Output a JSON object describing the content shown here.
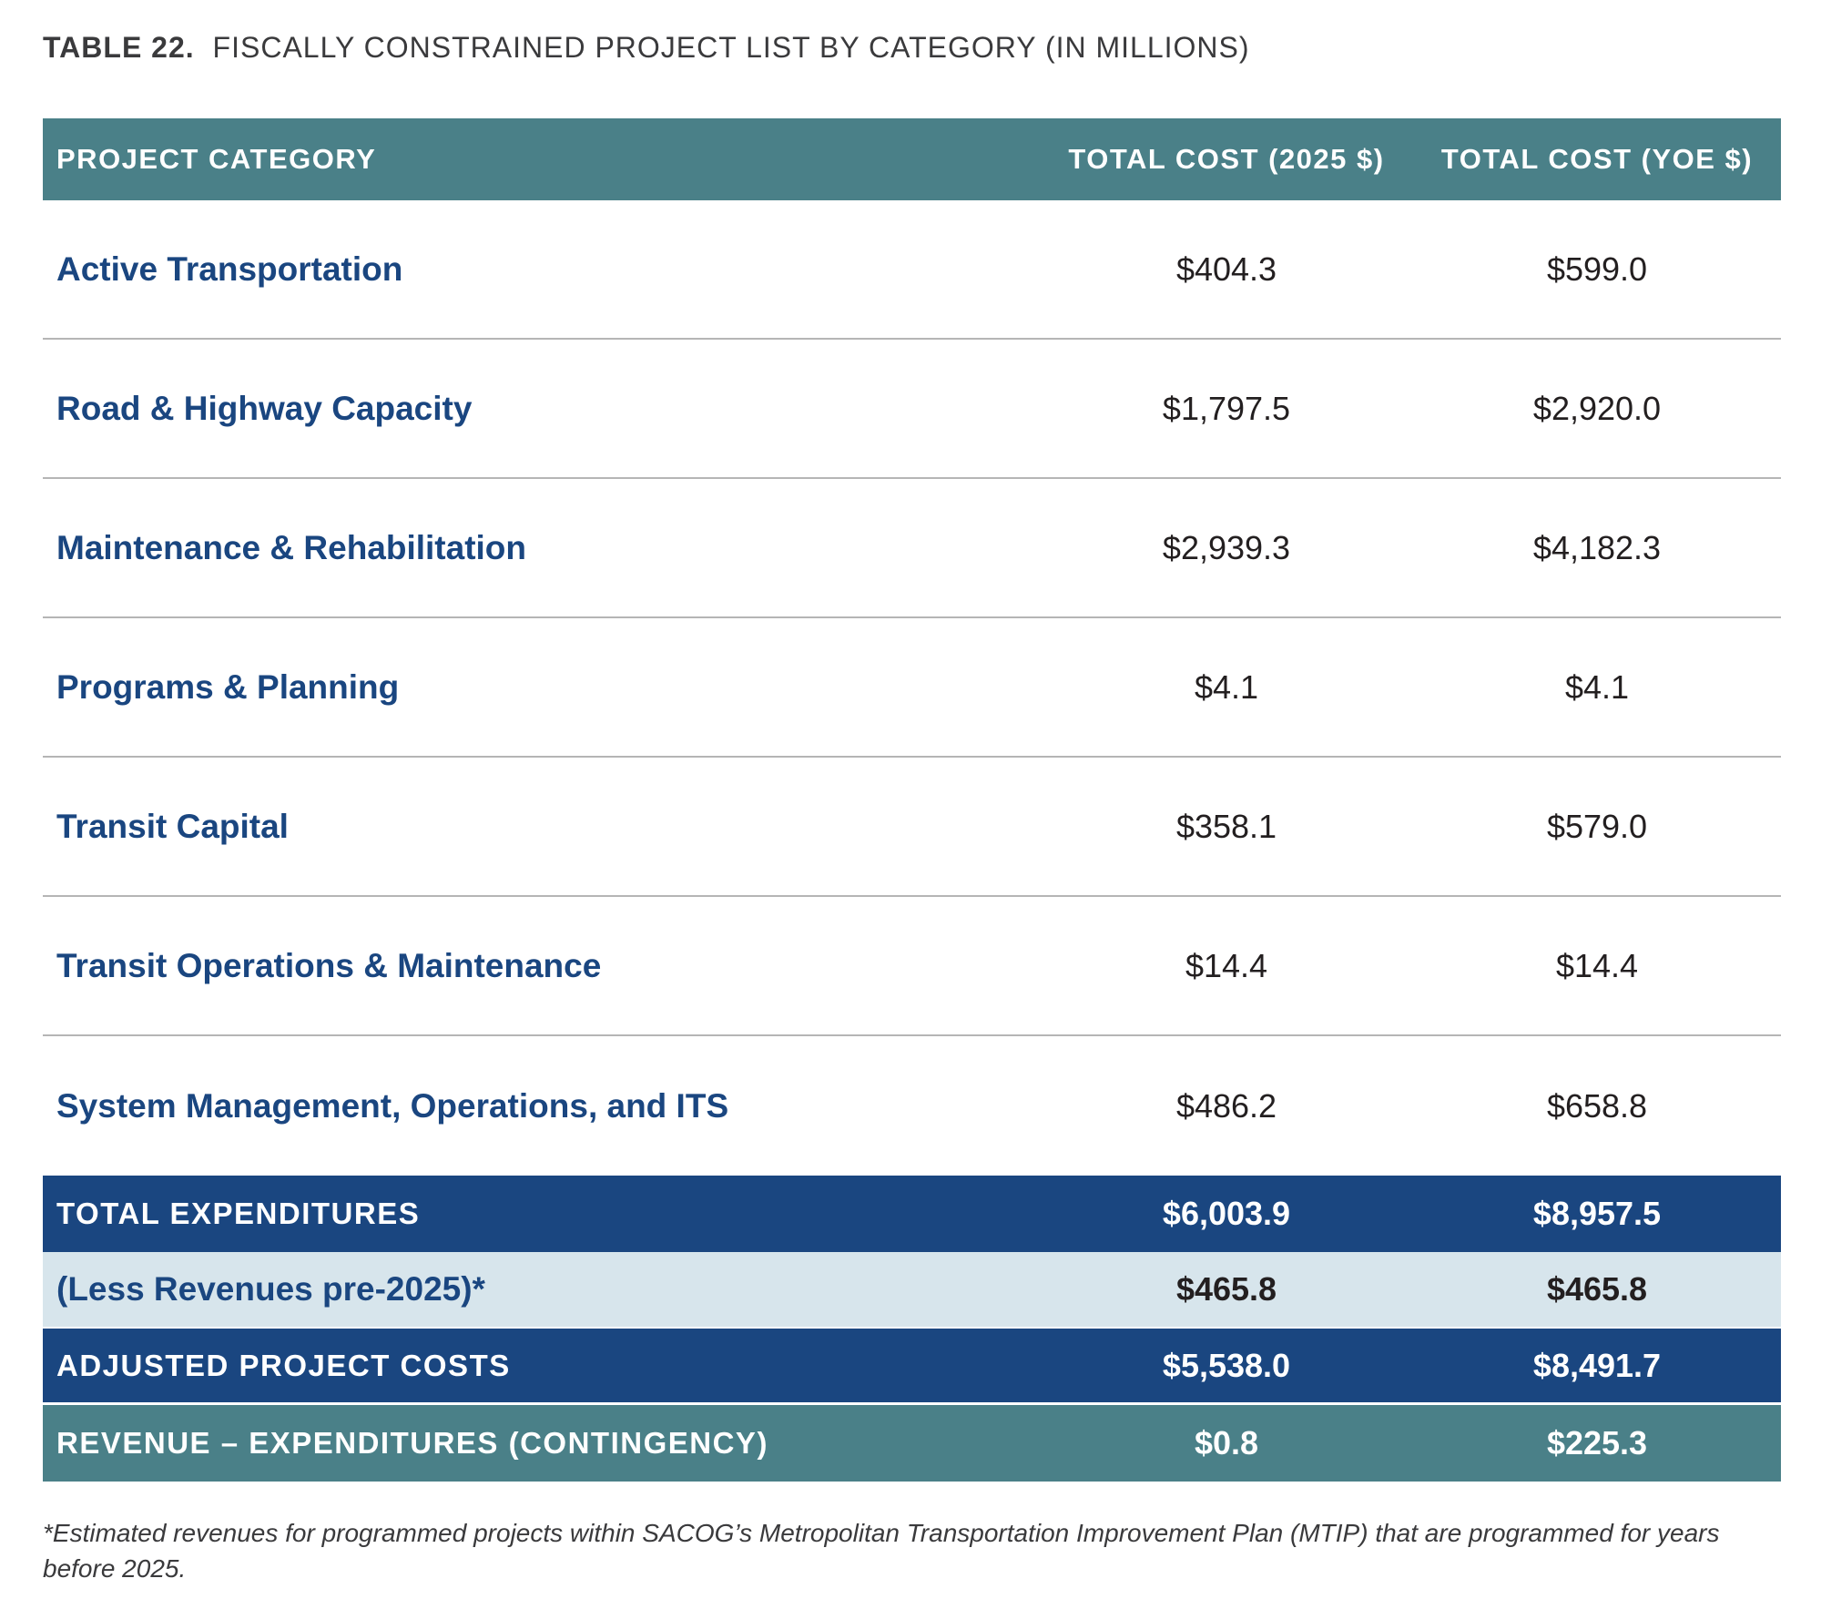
{
  "caption": {
    "number": "TABLE 22.",
    "title": "FISCALLY CONSTRAINED PROJECT LIST BY CATEGORY (IN MILLIONS)"
  },
  "header": {
    "category": "PROJECT CATEGORY",
    "cost_2025": "TOTAL COST (2025 $)",
    "cost_yoe": "TOTAL COST (YOE $)"
  },
  "rows": [
    {
      "category": "Active Transportation",
      "cost_2025": "$404.3",
      "cost_yoe": "$599.0"
    },
    {
      "category": "Road & Highway Capacity",
      "cost_2025": "$1,797.5",
      "cost_yoe": "$2,920.0"
    },
    {
      "category": "Maintenance & Rehabilitation",
      "cost_2025": "$2,939.3",
      "cost_yoe": "$4,182.3"
    },
    {
      "category": "Programs & Planning",
      "cost_2025": "$4.1",
      "cost_yoe": "$4.1"
    },
    {
      "category": "Transit Capital",
      "cost_2025": "$358.1",
      "cost_yoe": "$579.0"
    },
    {
      "category": "Transit Operations & Maintenance",
      "cost_2025": "$14.4",
      "cost_yoe": "$14.4"
    },
    {
      "category": "System Management, Operations, and ITS",
      "cost_2025": "$486.2",
      "cost_yoe": "$658.8"
    }
  ],
  "summary": {
    "total": {
      "label": "TOTAL EXPENDITURES",
      "cost_2025": "$6,003.9",
      "cost_yoe": "$8,957.5"
    },
    "less": {
      "label": "(Less Revenues pre-2025)*",
      "cost_2025": "$465.8",
      "cost_yoe": "$465.8"
    },
    "adjusted": {
      "label": "ADJUSTED PROJECT COSTS",
      "cost_2025": "$5,538.0",
      "cost_yoe": "$8,491.7"
    },
    "revenue": {
      "label": "REVENUE – EXPENDITURES (CONTINGENCY)",
      "cost_2025": "$0.8",
      "cost_yoe": "$225.3"
    }
  },
  "footnote": "*Estimated revenues for programmed projects within SACOG’s Metropolitan Transportation Improvement Plan (MTIP) that are programmed for years before 2025.",
  "colors": {
    "header_teal": "#4a8088",
    "navy": "#1a4680",
    "light_blue": "#d7e5ec"
  }
}
